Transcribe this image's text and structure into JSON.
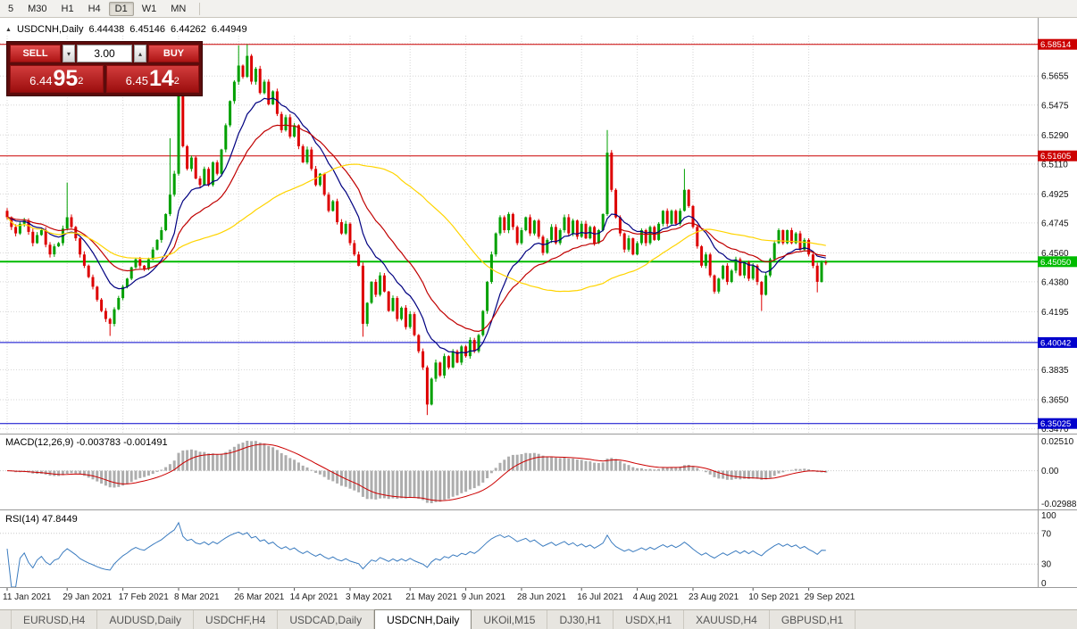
{
  "toolbar": {
    "timeframes": [
      {
        "label": "5"
      },
      {
        "label": "M30"
      },
      {
        "label": "H1"
      },
      {
        "label": "H4"
      },
      {
        "label": "D1",
        "active": true
      },
      {
        "label": "W1"
      },
      {
        "label": "MN"
      }
    ]
  },
  "window": {
    "header": {
      "collapse_icon": "▲",
      "symbol": "USDCNH,Daily",
      "ohlc": {
        "open": "6.44438",
        "high": "6.45146",
        "low": "6.44262",
        "close": "6.44949"
      }
    },
    "trade_panel": {
      "sell_label": "SELL",
      "buy_label": "BUY",
      "volume": "3.00",
      "spin_down_icon": "▾",
      "spin_up_icon": "▴",
      "sell_price": {
        "whole": "6.44",
        "pips": "95",
        "pipette": "2"
      },
      "buy_price": {
        "whole": "6.45",
        "pips": "14",
        "pipette": "2"
      }
    }
  },
  "indicators": {
    "macd": {
      "label": "MACD(12,26,9) -0.003783 -0.001491",
      "axis_labels": [
        "0.02510",
        "0.00",
        "-0.02988"
      ]
    },
    "rsi": {
      "label": "RSI(14) 47.8449",
      "axis_labels": [
        "100",
        "70",
        "30",
        "0"
      ],
      "levels": [
        70,
        30
      ]
    }
  },
  "tabs": [
    {
      "label": "EURUSD,H4"
    },
    {
      "label": "AUDUSD,Daily"
    },
    {
      "label": "USDCHF,H4"
    },
    {
      "label": "USDCAD,Daily"
    },
    {
      "label": "USDCNH,Daily",
      "active": true
    },
    {
      "label": "UKOil,M15"
    },
    {
      "label": "DJ30,H1"
    },
    {
      "label": "USDX,H1"
    },
    {
      "label": "XAUUSD,H4"
    },
    {
      "label": "GBPUSD,H1"
    }
  ],
  "chart_data": {
    "type": "candlestick",
    "symbol": "USDCNH",
    "timeframe": "Daily",
    "price_min": 6.344,
    "price_max": 6.5905,
    "price_axis_labels": [
      "6.5855",
      "6.5655",
      "6.5475",
      "6.5290",
      "6.5110",
      "6.4925",
      "6.4745",
      "6.4560",
      "6.4380",
      "6.4195",
      "6.4015",
      "6.3835",
      "6.3650",
      "6.3470"
    ],
    "date_labels": [
      "11 Jan 2021",
      "29 Jan 2021",
      "17 Feb 2021",
      "8 Mar 2021",
      "26 Mar 2021",
      "14 Apr 2021",
      "3 May 2021",
      "21 May 2021",
      "9 Jun 2021",
      "28 Jun 2021",
      "16 Jul 2021",
      "4 Aug 2021",
      "23 Aug 2021",
      "10 Sep 2021",
      "29 Sep 2021"
    ],
    "tick_indices": [
      0,
      14,
      27,
      40,
      54,
      67,
      80,
      94,
      107,
      120,
      134,
      147,
      160,
      174,
      187
    ],
    "hlines": [
      {
        "price": 6.58514,
        "label": "6.58514",
        "color": "#cc0000",
        "width": 1
      },
      {
        "price": 6.51605,
        "label": "6.51605",
        "color": "#cc0000",
        "width": 1
      },
      {
        "price": 6.4505,
        "label": "6.45050",
        "color": "#00bb00",
        "width": 2
      },
      {
        "price": 6.40042,
        "label": "6.40042",
        "color": "#0000cc",
        "width": 1
      },
      {
        "price": 6.35025,
        "label": "6.35025",
        "color": "#0000cc",
        "width": 1
      }
    ],
    "closes": [
      6.478,
      6.472,
      6.468,
      6.474,
      6.476,
      6.469,
      6.462,
      6.467,
      6.47,
      6.461,
      6.455,
      6.46,
      6.462,
      6.471,
      6.478,
      6.472,
      6.465,
      6.455,
      6.448,
      6.441,
      6.435,
      6.427,
      6.42,
      6.415,
      6.412,
      6.421,
      6.428,
      6.435,
      6.44,
      6.447,
      6.452,
      6.448,
      6.446,
      6.452,
      6.458,
      6.464,
      6.47,
      6.48,
      6.492,
      6.505,
      6.558,
      6.522,
      6.508,
      6.515,
      6.502,
      6.498,
      6.508,
      6.498,
      6.512,
      6.505,
      6.52,
      6.535,
      6.55,
      6.562,
      6.572,
      6.565,
      6.578,
      6.562,
      6.57,
      6.555,
      6.562,
      6.548,
      6.556,
      6.542,
      6.532,
      6.54,
      6.528,
      6.535,
      6.522,
      6.512,
      6.52,
      6.508,
      6.498,
      6.505,
      6.492,
      6.482,
      6.488,
      6.475,
      6.468,
      6.474,
      6.462,
      6.455,
      6.448,
      6.412,
      6.425,
      6.438,
      6.43,
      6.442,
      6.432,
      6.42,
      6.428,
      6.415,
      6.422,
      6.41,
      6.418,
      6.405,
      6.395,
      6.385,
      6.362,
      6.378,
      6.388,
      6.38,
      6.392,
      6.385,
      6.395,
      6.388,
      6.398,
      6.392,
      6.402,
      6.395,
      6.405,
      6.42,
      6.438,
      6.455,
      6.468,
      6.478,
      6.47,
      6.48,
      6.472,
      6.462,
      6.47,
      6.478,
      6.468,
      6.476,
      6.466,
      6.456,
      6.464,
      6.472,
      6.462,
      6.47,
      6.478,
      6.468,
      6.476,
      6.466,
      6.474,
      6.465,
      6.472,
      6.462,
      6.47,
      6.48,
      6.518,
      6.495,
      6.478,
      6.468,
      6.458,
      6.465,
      6.455,
      6.462,
      6.47,
      6.462,
      6.472,
      6.464,
      6.474,
      6.482,
      6.474,
      6.482,
      6.474,
      6.482,
      6.495,
      6.485,
      6.472,
      6.46,
      6.448,
      6.455,
      6.442,
      6.432,
      6.44,
      6.448,
      6.438,
      6.445,
      6.452,
      6.442,
      6.45,
      6.44,
      6.448,
      6.438,
      6.43,
      6.442,
      6.452,
      6.462,
      6.47,
      6.462,
      6.47,
      6.462,
      6.468,
      6.458,
      6.464,
      6.455,
      6.448,
      6.438,
      6.45,
      6.4495
    ],
    "high_overrides": {
      "14": 6.4995,
      "38": 6.527,
      "40": 6.573,
      "54": 6.5845,
      "56": 6.5851,
      "140": 6.532,
      "158": 6.508
    },
    "low_overrides": {
      "24": 6.4045,
      "83": 6.404,
      "98": 6.3555,
      "176": 6.42,
      "189": 6.4315
    },
    "ma": [
      {
        "name": "fast-ema",
        "type": "ema",
        "period": 12,
        "color": "#000080"
      },
      {
        "name": "mid-ema",
        "type": "ema",
        "period": 24,
        "color": "#c00000"
      },
      {
        "name": "slow-sma",
        "type": "sma",
        "period": 52,
        "color": "#ffd400"
      }
    ],
    "macd": {
      "fast": 12,
      "slow": 26,
      "signal": 9
    },
    "rsi_period": 14,
    "colors": {
      "up": "#00a000",
      "down": "#dd0000",
      "grid": "#d6d6d6",
      "hist": "#adadad",
      "signal": "#cc0000",
      "rsi": "#3a7bbf",
      "axis_text": "#111111",
      "separator": "#9a9a9a"
    }
  }
}
